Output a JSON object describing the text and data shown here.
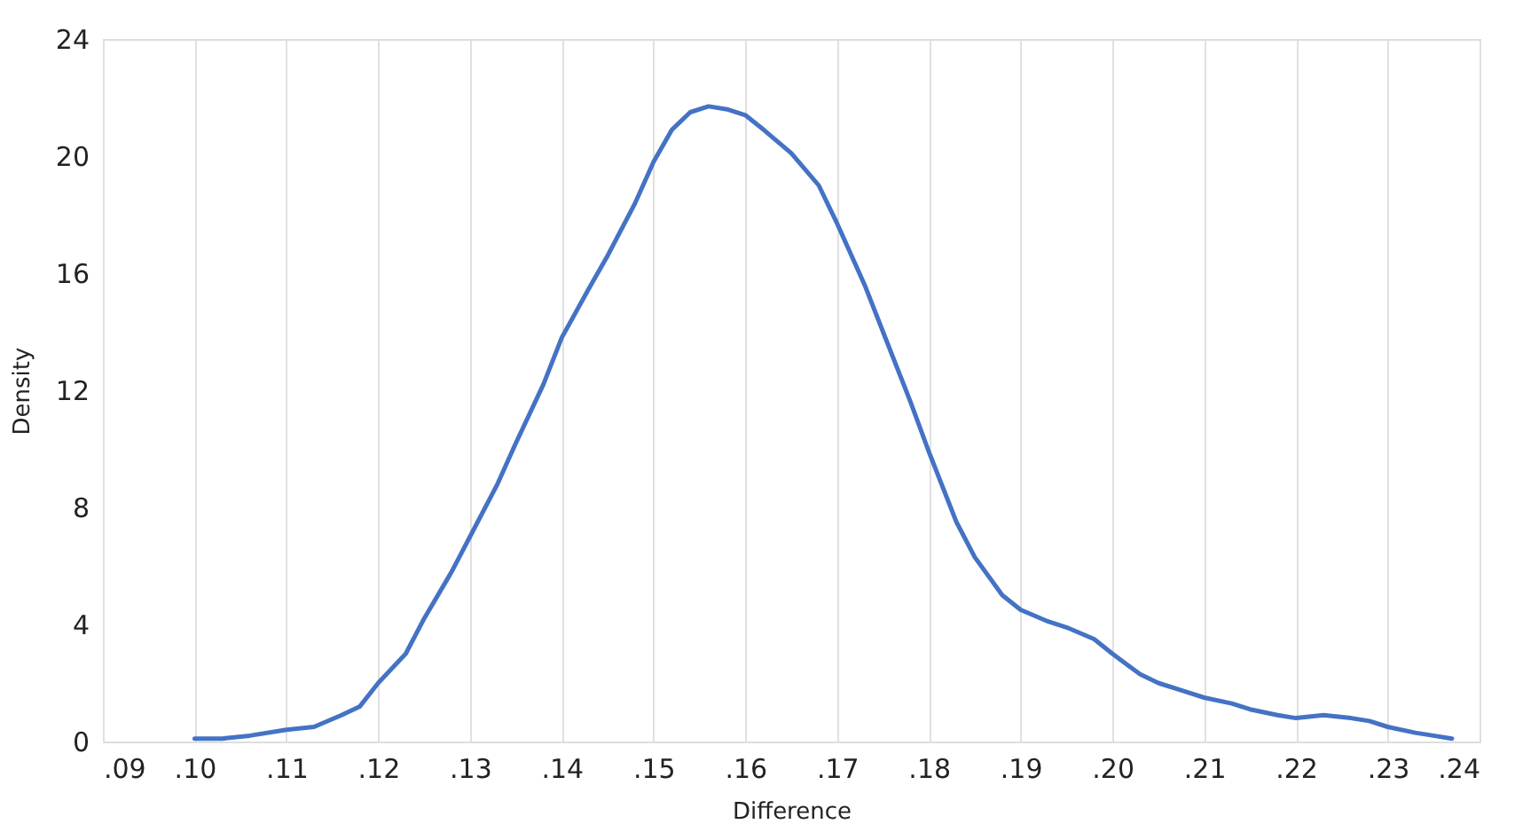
{
  "chart_data": {
    "type": "line",
    "xlabel": "Difference",
    "ylabel": "Density",
    "x": [
      0.1,
      0.103,
      0.106,
      0.11,
      0.113,
      0.116,
      0.118,
      0.12,
      0.123,
      0.125,
      0.128,
      0.13,
      0.133,
      0.135,
      0.138,
      0.14,
      0.143,
      0.145,
      0.148,
      0.15,
      0.152,
      0.154,
      0.156,
      0.158,
      0.16,
      0.162,
      0.165,
      0.168,
      0.17,
      0.173,
      0.175,
      0.178,
      0.18,
      0.183,
      0.185,
      0.188,
      0.19,
      0.193,
      0.195,
      0.198,
      0.2,
      0.203,
      0.205,
      0.208,
      0.21,
      0.213,
      0.215,
      0.218,
      0.22,
      0.223,
      0.226,
      0.228,
      0.23,
      0.233,
      0.235,
      0.237
    ],
    "series": [
      {
        "color": "#4472c4",
        "values": [
          0.1,
          0.1,
          0.2,
          0.4,
          0.5,
          0.9,
          1.2,
          2.0,
          3.0,
          4.2,
          5.8,
          7.0,
          8.8,
          10.2,
          12.2,
          13.8,
          15.5,
          16.6,
          18.4,
          19.8,
          20.9,
          21.5,
          21.7,
          21.6,
          21.4,
          20.9,
          20.1,
          19.0,
          17.7,
          15.6,
          14.0,
          11.6,
          9.9,
          7.5,
          6.3,
          5.0,
          4.5,
          4.1,
          3.9,
          3.5,
          3.0,
          2.3,
          2.0,
          1.7,
          1.5,
          1.3,
          1.1,
          0.9,
          0.8,
          0.9,
          0.8,
          0.7,
          0.5,
          0.3,
          0.2,
          0.1
        ]
      }
    ],
    "xlim": [
      0.09,
      0.24
    ],
    "xticks": [
      {
        "value": 0.09,
        "label": ".09"
      },
      {
        "value": 0.1,
        "label": ".10"
      },
      {
        "value": 0.11,
        "label": ".11"
      },
      {
        "value": 0.12,
        "label": ".12"
      },
      {
        "value": 0.13,
        "label": ".13"
      },
      {
        "value": 0.14,
        "label": ".14"
      },
      {
        "value": 0.15,
        "label": ".15"
      },
      {
        "value": 0.16,
        "label": ".16"
      },
      {
        "value": 0.17,
        "label": ".17"
      },
      {
        "value": 0.18,
        "label": ".18"
      },
      {
        "value": 0.19,
        "label": ".19"
      },
      {
        "value": 0.2,
        "label": ".20"
      },
      {
        "value": 0.21,
        "label": ".21"
      },
      {
        "value": 0.22,
        "label": ".22"
      },
      {
        "value": 0.23,
        "label": ".23"
      },
      {
        "value": 0.24,
        "label": ".24"
      }
    ],
    "ylim": [
      0,
      24
    ],
    "yticks": [
      0,
      4,
      8,
      12,
      16,
      20,
      24
    ],
    "grid": "x",
    "marker": "none",
    "line_style": "solid"
  }
}
